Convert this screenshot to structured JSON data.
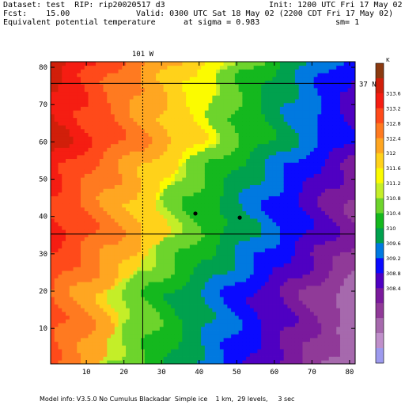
{
  "header": {
    "line1_left": "Dataset: test  RIP: rip20020517 d3",
    "line1_right": "Init: 1200 UTC Fri 17 May 02",
    "line2_left": "Fcst:    15.00",
    "line2_right": "Valid: 0300 UTC Sat 18 May 02 (2200 CDT Fri 17 May 02)",
    "line3_left": "Equivalent potential temperature",
    "line3_mid": "at sigma = 0.983",
    "line3_right": "sm= 1"
  },
  "footer": "Model info: V3.5.0 No Cumulus Blackadar  Simple ice    1 km,  29 levels,     3 sec",
  "chart_data": {
    "type": "heatmap",
    "xlabel": "",
    "ylabel": "",
    "xlim": [
      0.5,
      81.5
    ],
    "ylim": [
      0.5,
      81.5
    ],
    "x_ticks": [
      10,
      20,
      30,
      40,
      50,
      60,
      70,
      80
    ],
    "y_ticks": [
      10,
      20,
      30,
      40,
      50,
      60,
      70,
      80
    ],
    "meridian_label": "101 W",
    "meridian_x": 25,
    "parallel_label": "37 N",
    "parallel_y": 75.7,
    "parallel2_y": 35.3,
    "points": [
      {
        "x": 39,
        "y": 40.8
      },
      {
        "x": 50.8,
        "y": 39.7
      }
    ],
    "colorbar": {
      "unit": "K",
      "labels": [
        "313.6",
        "313.2",
        "312.8",
        "312.4",
        "312",
        "311.6",
        "311.2",
        "310.8",
        "310.4",
        "310",
        "309.6",
        "309.2",
        "308.8",
        "308.4"
      ],
      "colors": [
        "#8b3a10",
        "#d11f0a",
        "#f51d12",
        "#ff4a1a",
        "#ff7a20",
        "#ffa621",
        "#ffd21a",
        "#fbfb00",
        "#c4ee28",
        "#6dd42c",
        "#14b81e",
        "#00a14e",
        "#0079e0",
        "#0a0aff",
        "#4f00c2",
        "#7a1a9c",
        "#903a98",
        "#a669ad",
        "#bf8fca",
        "#9d9aee"
      ]
    }
  }
}
